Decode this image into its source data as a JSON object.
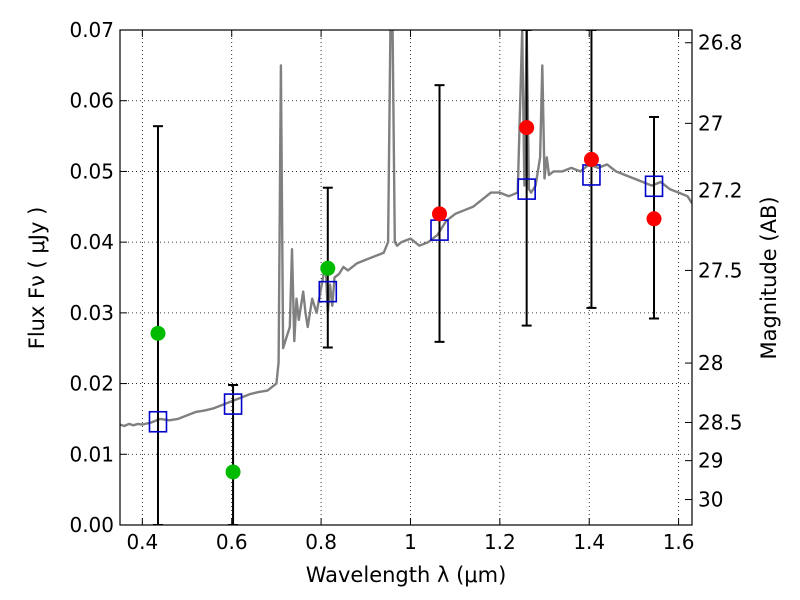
{
  "chart_data": {
    "type": "scatter",
    "xlabel": "Wavelength  λ (μm)",
    "ylabel": "Flux  Fν  ( μJy )",
    "y2label": "Magnitude (AB)",
    "xlim": [
      0.35,
      1.63
    ],
    "ylim": [
      0.0,
      0.07
    ],
    "x_ticks": [
      {
        "value": 0.4,
        "label": "0.4"
      },
      {
        "value": 0.6,
        "label": "0.6"
      },
      {
        "value": 0.8,
        "label": "0.8"
      },
      {
        "value": 1.0,
        "label": "1"
      },
      {
        "value": 1.2,
        "label": "1.2"
      },
      {
        "value": 1.4,
        "label": "1.4"
      },
      {
        "value": 1.6,
        "label": "1.6"
      }
    ],
    "y_ticks": [
      {
        "value": 0.0,
        "label": "0.00"
      },
      {
        "value": 0.01,
        "label": "0.01"
      },
      {
        "value": 0.02,
        "label": "0.02"
      },
      {
        "value": 0.03,
        "label": "0.03"
      },
      {
        "value": 0.04,
        "label": "0.04"
      },
      {
        "value": 0.05,
        "label": "0.05"
      },
      {
        "value": 0.06,
        "label": "0.06"
      },
      {
        "value": 0.07,
        "label": "0.07"
      }
    ],
    "y2_ticks": [
      {
        "flux": 0.0682,
        "label": "26.8"
      },
      {
        "flux": 0.0568,
        "label": "27"
      },
      {
        "flux": 0.0473,
        "label": "27.2"
      },
      {
        "flux": 0.036,
        "label": "27.5"
      },
      {
        "flux": 0.0229,
        "label": "28"
      },
      {
        "flux": 0.0145,
        "label": "28.5"
      },
      {
        "flux": 0.0091,
        "label": "29"
      },
      {
        "flux": 0.0036,
        "label": "30"
      }
    ],
    "grid": true,
    "colors": {
      "model": "#808080",
      "green_points": "#00bb00",
      "red_points": "#ff0000",
      "model_boxes": "#0000cc",
      "errorbars": "#000000"
    },
    "series": [
      {
        "marker": "line",
        "x": [
          0.35,
          0.36,
          0.37,
          0.38,
          0.39,
          0.4,
          0.42,
          0.44,
          0.46,
          0.48,
          0.5,
          0.52,
          0.54,
          0.56,
          0.58,
          0.6,
          0.62,
          0.64,
          0.66,
          0.68,
          0.69,
          0.7,
          0.705,
          0.71,
          0.715,
          0.72,
          0.73,
          0.735,
          0.74,
          0.745,
          0.75,
          0.76,
          0.765,
          0.77,
          0.78,
          0.79,
          0.8,
          0.81,
          0.815,
          0.82,
          0.825,
          0.83,
          0.84,
          0.85,
          0.86,
          0.88,
          0.9,
          0.92,
          0.94,
          0.95,
          0.955,
          0.96,
          0.965,
          0.97,
          0.98,
          1.0,
          1.02,
          1.04,
          1.06,
          1.08,
          1.1,
          1.12,
          1.14,
          1.16,
          1.18,
          1.2,
          1.22,
          1.24,
          1.25,
          1.255,
          1.26,
          1.265,
          1.27,
          1.28,
          1.29,
          1.295,
          1.3,
          1.305,
          1.31,
          1.32,
          1.34,
          1.36,
          1.38,
          1.4,
          1.42,
          1.44,
          1.46,
          1.48,
          1.5,
          1.52,
          1.54,
          1.56,
          1.58,
          1.6,
          1.62,
          1.63
        ],
        "y": [
          0.0142,
          0.014,
          0.0143,
          0.0141,
          0.0143,
          0.0142,
          0.0145,
          0.015,
          0.0148,
          0.015,
          0.0155,
          0.016,
          0.0162,
          0.0165,
          0.017,
          0.0175,
          0.018,
          0.0185,
          0.0188,
          0.019,
          0.0195,
          0.02,
          0.023,
          0.065,
          0.025,
          0.026,
          0.028,
          0.039,
          0.026,
          0.032,
          0.029,
          0.033,
          0.03,
          0.028,
          0.032,
          0.03,
          0.0335,
          0.037,
          0.03,
          0.034,
          0.031,
          0.035,
          0.0355,
          0.0365,
          0.036,
          0.037,
          0.0375,
          0.038,
          0.0385,
          0.04,
          0.07,
          0.07,
          0.04,
          0.0395,
          0.04,
          0.0405,
          0.0395,
          0.04,
          0.041,
          0.043,
          0.044,
          0.0445,
          0.045,
          0.046,
          0.047,
          0.047,
          0.0465,
          0.047,
          0.07,
          0.048,
          0.07,
          0.0475,
          0.047,
          0.048,
          0.052,
          0.065,
          0.049,
          0.052,
          0.0495,
          0.05,
          0.05,
          0.0505,
          0.05,
          0.051,
          0.0505,
          0.051,
          0.05,
          0.0495,
          0.049,
          0.0485,
          0.048,
          0.0485,
          0.0475,
          0.047,
          0.0465,
          0.0455
        ]
      },
      {
        "marker": "errorbar",
        "x": [
          0.435,
          0.603,
          0.815,
          1.065,
          1.26,
          1.405,
          1.545
        ],
        "low": [
          0.0,
          0.0,
          0.0251,
          0.0259,
          0.0282,
          0.0307,
          0.0292
        ],
        "high": [
          0.0564,
          0.0198,
          0.0477,
          0.0622,
          0.07,
          0.07,
          0.0577
        ]
      },
      {
        "marker": "open-square",
        "x": [
          0.435,
          0.603,
          0.815,
          1.065,
          1.26,
          1.405,
          1.545
        ],
        "y": [
          0.0146,
          0.0171,
          0.033,
          0.0417,
          0.0475,
          0.0495,
          0.0479
        ]
      },
      {
        "marker": "filled-circle-green",
        "x": [
          0.435,
          0.603,
          0.815
        ],
        "y": [
          0.0271,
          0.0075,
          0.0363
        ]
      },
      {
        "marker": "filled-circle-red",
        "x": [
          1.065,
          1.26,
          1.405,
          1.545
        ],
        "y": [
          0.044,
          0.0562,
          0.0517,
          0.0433
        ]
      }
    ]
  }
}
